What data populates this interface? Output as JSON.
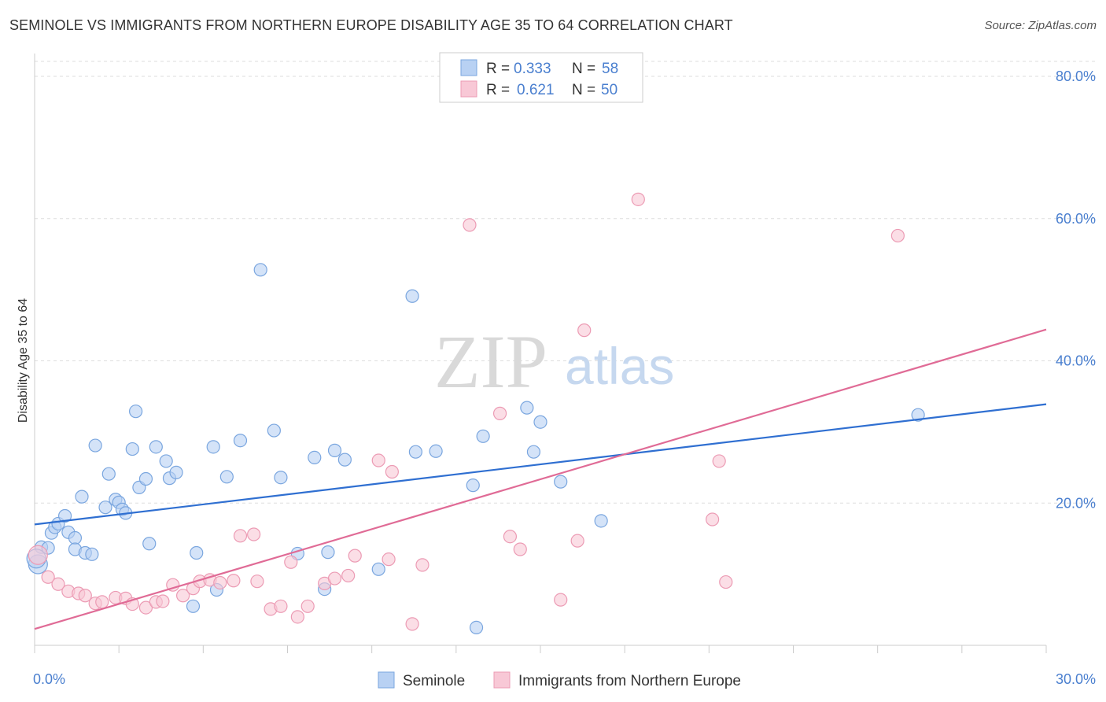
{
  "title": "SEMINOLE VS IMMIGRANTS FROM NORTHERN EUROPE DISABILITY AGE 35 TO 64 CORRELATION CHART",
  "source": "Source: ZipAtlas.com",
  "watermark": {
    "zip": "ZIP",
    "atlas": "atlas"
  },
  "colors": {
    "blue_fill": "#b8d1f3",
    "blue_stroke": "#7aa6df",
    "blue_line": "#2f6fd1",
    "pink_fill": "#f8c8d6",
    "pink_stroke": "#ec9bb4",
    "pink_line": "#e06b96",
    "grid": "#dddddd",
    "tick_text": "#4a7fcf"
  },
  "legend": {
    "series": [
      {
        "r_label": "R =",
        "r_value": "0.333",
        "n_label": "N =",
        "n_value": "58"
      },
      {
        "r_label": "R =",
        "r_value": "0.621",
        "n_label": "N =",
        "n_value": "50"
      }
    ]
  },
  "chart_data": {
    "type": "scatter",
    "title": "SEMINOLE VS IMMIGRANTS FROM NORTHERN EUROPE DISABILITY AGE 35 TO 64 CORRELATION CHART",
    "xlabel": "",
    "ylabel": "Disability Age 35 to 64",
    "xlim": [
      0,
      30
    ],
    "ylim": [
      0,
      80
    ],
    "x_tick_labels": [
      "0.0%",
      "30.0%"
    ],
    "y_ticks": [
      20,
      40,
      60,
      80
    ],
    "y_tick_labels": [
      "20.0%",
      "40.0%",
      "60.0%",
      "80.0%"
    ],
    "grid": true,
    "legend_position": "top-center",
    "series": [
      {
        "name": "Seminole",
        "trend": {
          "x0": 0,
          "y0": 17.0,
          "x1": 30,
          "y1": 33.9
        },
        "points": [
          [
            0.1,
            11.4
          ],
          [
            0.2,
            13.8
          ],
          [
            0.4,
            13.7
          ],
          [
            0.5,
            15.8
          ],
          [
            0.6,
            16.6
          ],
          [
            0.7,
            17.1
          ],
          [
            0.9,
            18.2
          ],
          [
            1.0,
            15.9
          ],
          [
            1.2,
            15.1
          ],
          [
            1.2,
            13.5
          ],
          [
            1.4,
            20.9
          ],
          [
            1.5,
            13.0
          ],
          [
            1.7,
            12.8
          ],
          [
            1.8,
            28.1
          ],
          [
            2.1,
            19.4
          ],
          [
            2.2,
            24.1
          ],
          [
            2.4,
            20.5
          ],
          [
            2.5,
            20.1
          ],
          [
            2.6,
            19.1
          ],
          [
            2.7,
            18.6
          ],
          [
            2.9,
            27.6
          ],
          [
            3.0,
            32.9
          ],
          [
            3.1,
            22.2
          ],
          [
            3.3,
            23.4
          ],
          [
            3.4,
            14.3
          ],
          [
            3.6,
            27.9
          ],
          [
            3.9,
            25.9
          ],
          [
            4.0,
            23.5
          ],
          [
            4.2,
            24.3
          ],
          [
            4.7,
            5.5
          ],
          [
            4.8,
            13.0
          ],
          [
            5.3,
            27.9
          ],
          [
            5.4,
            7.8
          ],
          [
            5.7,
            23.7
          ],
          [
            6.1,
            28.8
          ],
          [
            6.7,
            52.8
          ],
          [
            7.1,
            30.2
          ],
          [
            7.3,
            23.6
          ],
          [
            7.8,
            12.9
          ],
          [
            8.3,
            26.4
          ],
          [
            8.6,
            7.9
          ],
          [
            8.7,
            13.1
          ],
          [
            8.9,
            27.4
          ],
          [
            9.2,
            26.1
          ],
          [
            10.2,
            10.7
          ],
          [
            11.2,
            49.1
          ],
          [
            11.3,
            27.2
          ],
          [
            11.9,
            27.3
          ],
          [
            13.1,
            2.5
          ],
          [
            13.0,
            22.5
          ],
          [
            13.3,
            29.4
          ],
          [
            14.6,
            33.4
          ],
          [
            14.8,
            27.2
          ],
          [
            15.0,
            31.4
          ],
          [
            15.6,
            23.0
          ],
          [
            16.8,
            17.5
          ],
          [
            26.2,
            32.4
          ],
          [
            0.05,
            12.2
          ]
        ]
      },
      {
        "name": "Immigrants from Northern Europe",
        "trend": {
          "x0": 0,
          "y0": 2.3,
          "x1": 30,
          "y1": 44.4
        },
        "points": [
          [
            0.1,
            12.7
          ],
          [
            0.4,
            9.6
          ],
          [
            0.7,
            8.6
          ],
          [
            1.0,
            7.6
          ],
          [
            1.3,
            7.3
          ],
          [
            1.5,
            7.0
          ],
          [
            1.8,
            5.9
          ],
          [
            2.0,
            6.1
          ],
          [
            2.4,
            6.7
          ],
          [
            2.7,
            6.6
          ],
          [
            2.9,
            5.8
          ],
          [
            3.3,
            5.3
          ],
          [
            3.6,
            6.1
          ],
          [
            3.8,
            6.2
          ],
          [
            4.1,
            8.5
          ],
          [
            4.4,
            7.0
          ],
          [
            4.7,
            8.0
          ],
          [
            4.9,
            9.0
          ],
          [
            5.2,
            9.2
          ],
          [
            5.5,
            8.8
          ],
          [
            5.9,
            9.1
          ],
          [
            6.1,
            15.4
          ],
          [
            6.5,
            15.6
          ],
          [
            6.6,
            9.0
          ],
          [
            7.0,
            5.1
          ],
          [
            7.3,
            5.5
          ],
          [
            7.6,
            11.7
          ],
          [
            7.8,
            4.0
          ],
          [
            8.1,
            5.5
          ],
          [
            8.6,
            8.7
          ],
          [
            8.9,
            9.4
          ],
          [
            9.3,
            9.8
          ],
          [
            9.5,
            12.6
          ],
          [
            10.2,
            26.0
          ],
          [
            10.5,
            12.1
          ],
          [
            10.6,
            24.4
          ],
          [
            11.2,
            3.0
          ],
          [
            11.5,
            11.3
          ],
          [
            12.9,
            59.1
          ],
          [
            13.8,
            32.6
          ],
          [
            14.1,
            15.3
          ],
          [
            14.4,
            13.5
          ],
          [
            15.6,
            6.4
          ],
          [
            16.1,
            14.7
          ],
          [
            16.3,
            44.3
          ],
          [
            17.9,
            62.7
          ],
          [
            20.1,
            17.7
          ],
          [
            20.3,
            25.9
          ],
          [
            20.5,
            8.9
          ],
          [
            25.6,
            57.6
          ]
        ]
      }
    ]
  },
  "bottom_legend": [
    "Seminole",
    "Immigrants from Northern Europe"
  ]
}
